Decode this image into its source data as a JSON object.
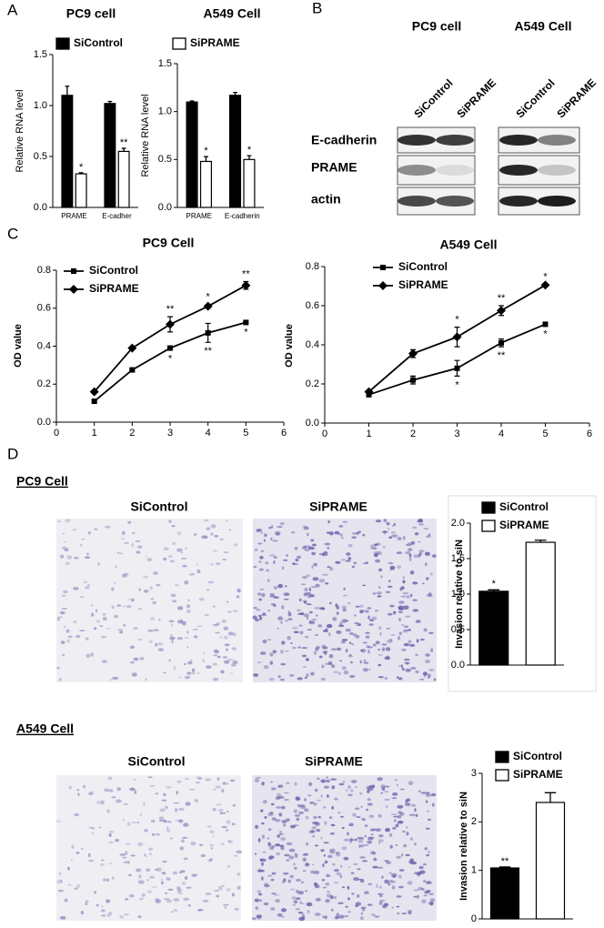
{
  "panel_labels": [
    "A",
    "B",
    "C",
    "D"
  ],
  "blot": {
    "titles": [
      "PC9 cell",
      "A549 Cell"
    ],
    "lanes": [
      "SiControl",
      "SiPRAME",
      "SiControl",
      "SiPRAME"
    ],
    "rows": [
      "E-cadherin",
      "PRAME",
      "actin"
    ]
  },
  "invasion": {
    "sections": [
      {
        "heading": "PC9 Cell",
        "captions": [
          "SiControl",
          "SiPRAME"
        ]
      },
      {
        "heading": "A549 Cell",
        "captions": [
          "SiControl",
          "SiPRAME"
        ]
      }
    ]
  },
  "chart_data": [
    {
      "type": "bar",
      "title": "PC9 cell",
      "y_label": "Relative RNA level",
      "categories": [
        "PRAME",
        "E-cadher"
      ],
      "ylim": [
        0,
        1.5
      ],
      "yticks": [
        {
          "value": 0,
          "label": "0.0"
        },
        {
          "value": 0.5,
          "label": "0.5"
        },
        {
          "value": 1,
          "label": "1.0"
        },
        {
          "value": 1.5,
          "label": "1.5"
        }
      ],
      "series": [
        {
          "name": "SiControl",
          "color": "#000000",
          "values": [
            1.1,
            1.02
          ],
          "errors": [
            0.09,
            0.02
          ]
        },
        {
          "name": "SiPRAME",
          "color": "#ffffff",
          "values": [
            0.33,
            0.55
          ],
          "errors": [
            0.01,
            0.03
          ],
          "significance": [
            "*",
            "**"
          ]
        }
      ]
    },
    {
      "type": "bar",
      "title": "A549 Cell",
      "y_label": "Relative RNA level",
      "categories": [
        "PRAME",
        "E-cadherin"
      ],
      "ylim": [
        0,
        1.5
      ],
      "yticks": [
        {
          "value": 0,
          "label": "0.0"
        },
        {
          "value": 0.5,
          "label": "0.5"
        },
        {
          "value": 1,
          "label": "1.0"
        },
        {
          "value": 1.5,
          "label": "1.5"
        }
      ],
      "series": [
        {
          "color": "#000000",
          "values": [
            1.1,
            1.17
          ],
          "errors": [
            0.01,
            0.03
          ]
        },
        {
          "color": "#ffffff",
          "values": [
            0.48,
            0.5
          ],
          "errors": [
            0.05,
            0.04
          ],
          "significance": [
            "*",
            "*"
          ]
        }
      ]
    },
    {
      "type": "line",
      "title": "PC9 Cell",
      "y_label": "OD value",
      "x": [
        1,
        2,
        3,
        4,
        5
      ],
      "xlim": [
        0,
        6
      ],
      "xticks": [
        0,
        1,
        2,
        3,
        4,
        5,
        6
      ],
      "ylim": [
        0,
        0.8
      ],
      "yticks": [
        {
          "value": 0,
          "label": "0.0"
        },
        {
          "value": 0.2,
          "label": "0.2"
        },
        {
          "value": 0.4,
          "label": "0.4"
        },
        {
          "value": 0.6,
          "label": "0.6"
        },
        {
          "value": 0.8,
          "label": "0.8"
        }
      ],
      "series": [
        {
          "name": "SiControl",
          "color": "#000000",
          "marker": "square",
          "values": [
            0.11,
            0.275,
            0.39,
            0.47,
            0.525
          ],
          "errors": [
            0.005,
            0.005,
            0.01,
            0.05,
            0.005
          ],
          "significance": [
            null,
            null,
            "*",
            "**",
            "*"
          ]
        },
        {
          "name": "SiPRAME",
          "color": "#000000",
          "marker": "diamond",
          "values": [
            0.16,
            0.39,
            0.515,
            0.61,
            0.72
          ],
          "errors": [
            0.005,
            0.005,
            0.04,
            0.01,
            0.02
          ],
          "significance": [
            null,
            null,
            "**",
            "*",
            "**"
          ]
        }
      ]
    },
    {
      "type": "line",
      "title": "A549 Cell",
      "y_label": "OD value",
      "x": [
        1,
        2,
        3,
        4,
        5
      ],
      "xlim": [
        0,
        6
      ],
      "xticks": [
        0,
        1,
        2,
        3,
        4,
        5,
        6
      ],
      "ylim": [
        0,
        0.8
      ],
      "yticks": [
        {
          "value": 0,
          "label": "0.0"
        },
        {
          "value": 0.2,
          "label": "0.2"
        },
        {
          "value": 0.4,
          "label": "0.4"
        },
        {
          "value": 0.6,
          "label": "0.6"
        },
        {
          "value": 0.8,
          "label": "0.8"
        }
      ],
      "series": [
        {
          "name": "SiControl",
          "color": "#000000",
          "marker": "square",
          "values": [
            0.145,
            0.22,
            0.28,
            0.41,
            0.505
          ],
          "errors": [
            0.01,
            0.02,
            0.04,
            0.02,
            0.005
          ],
          "significance": [
            null,
            null,
            "*",
            "**",
            "*"
          ]
        },
        {
          "name": "SiPRAME",
          "color": "#000000",
          "marker": "diamond",
          "values": [
            0.16,
            0.355,
            0.44,
            0.575,
            0.705
          ],
          "errors": [
            0.005,
            0.02,
            0.05,
            0.025,
            0.005
          ],
          "significance": [
            null,
            null,
            "*",
            "**",
            "*"
          ]
        }
      ]
    },
    {
      "type": "bar",
      "y_label": "Invasion relative to siN",
      "ylim": [
        0,
        2
      ],
      "yticks": [
        {
          "value": 0,
          "label": "0.0"
        },
        {
          "value": 0.5,
          "label": "0.5"
        },
        {
          "value": 1,
          "label": "1.0"
        },
        {
          "value": 1.5,
          "label": "1.5"
        },
        {
          "value": 2,
          "label": "2.0"
        }
      ],
      "series": [
        {
          "name": "SiControl",
          "color": "#000000",
          "values": [
            1.04
          ],
          "errors": [
            0.02
          ],
          "significance": [
            "*"
          ]
        },
        {
          "name": "SiPRAME",
          "color": "#ffffff",
          "values": [
            1.73
          ],
          "errors": [
            0.03
          ]
        }
      ]
    },
    {
      "type": "bar",
      "y_label": "Invasion relative to siN",
      "ylim": [
        0,
        3
      ],
      "yticks": [
        0,
        1,
        2,
        3
      ],
      "series": [
        {
          "name": "SiControl",
          "color": "#000000",
          "values": [
            1.05
          ],
          "errors": [
            0.02
          ],
          "significance": [
            "**"
          ]
        },
        {
          "name": "SiPRAME",
          "color": "#ffffff",
          "values": [
            2.4
          ],
          "errors": [
            0.2
          ]
        }
      ]
    }
  ]
}
